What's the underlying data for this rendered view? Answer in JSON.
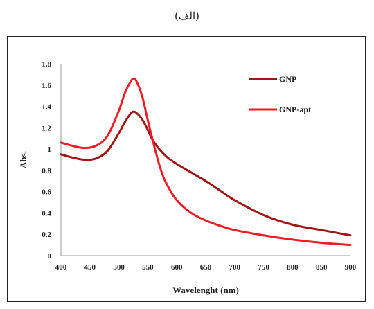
{
  "caption": "(الف)",
  "chart_data": {
    "type": "line",
    "title": "",
    "xlabel": "Wavelenght (nm)",
    "ylabel": "Abs.",
    "xlim": [
      400,
      900
    ],
    "ylim": [
      0,
      1.8
    ],
    "xticks": [
      400,
      450,
      500,
      550,
      600,
      650,
      700,
      750,
      800,
      850,
      900
    ],
    "yticks": [
      0,
      0.2,
      0.4,
      0.6,
      0.8,
      1,
      1.2,
      1.4,
      1.6,
      1.8
    ],
    "ytick_labels": [
      "0",
      "0.2",
      "0.4",
      "0.6",
      "0.8",
      "1",
      "1.2",
      "1.4",
      "1.6",
      "1.8"
    ],
    "legend_position": "top-right",
    "grid": false,
    "series": [
      {
        "name": "GNP",
        "color": "#a31515",
        "x": [
          400,
          420,
          440,
          460,
          480,
          500,
          510,
          520,
          525,
          530,
          540,
          550,
          560,
          580,
          600,
          625,
          650,
          675,
          700,
          750,
          800,
          850,
          900
        ],
        "y": [
          0.95,
          0.92,
          0.9,
          0.91,
          0.98,
          1.15,
          1.25,
          1.33,
          1.35,
          1.34,
          1.28,
          1.18,
          1.07,
          0.94,
          0.86,
          0.78,
          0.7,
          0.61,
          0.52,
          0.38,
          0.29,
          0.24,
          0.19
        ]
      },
      {
        "name": "GNP-apt",
        "color": "#ee1c25",
        "x": [
          400,
          420,
          440,
          460,
          480,
          500,
          510,
          520,
          525,
          530,
          540,
          550,
          560,
          570,
          580,
          600,
          625,
          650,
          675,
          700,
          750,
          800,
          850,
          900
        ],
        "y": [
          1.06,
          1.03,
          1.01,
          1.03,
          1.12,
          1.36,
          1.52,
          1.63,
          1.66,
          1.64,
          1.5,
          1.27,
          1.05,
          0.85,
          0.7,
          0.52,
          0.4,
          0.33,
          0.28,
          0.24,
          0.19,
          0.15,
          0.12,
          0.1
        ]
      }
    ]
  }
}
